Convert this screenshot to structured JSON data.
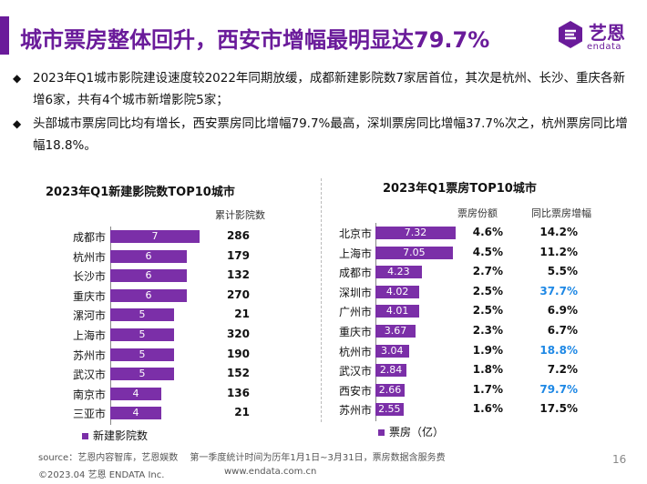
{
  "header": {
    "title": "城市票房整体回升，西安市增幅最明显达79.7%",
    "logo_cn": "艺恩",
    "logo_en": "endata"
  },
  "bullets": [
    "2023年Q1城市影院建设速度较2022年同期放缓，成都新建影院数7家居首位，其次是杭州、长沙、重庆各新增6家，共有4个城市新增影院5家；",
    "头部城市票房同比均有增长，西安票房同比增幅79.7%最高，深圳票房同比增幅37.7%次之，杭州票房同比增幅18.8%。"
  ],
  "chart_data": [
    {
      "type": "bar",
      "orientation": "horizontal",
      "title": "2023年Q1新建影院数TOP10城市",
      "categories": [
        "成都市",
        "杭州市",
        "长沙市",
        "重庆市",
        "漯河市",
        "上海市",
        "苏州市",
        "武汉市",
        "南京市",
        "三亚市"
      ],
      "series": [
        {
          "name": "新建影院数",
          "values": [
            7,
            6,
            6,
            6,
            5,
            5,
            5,
            5,
            4,
            4
          ]
        }
      ],
      "table_header": "累计影院数",
      "table_values": [
        "286",
        "179",
        "132",
        "270",
        "21",
        "320",
        "190",
        "152",
        "136",
        "21"
      ]
    },
    {
      "type": "bar",
      "orientation": "horizontal",
      "title": "2023年Q1票房TOP10城市",
      "categories": [
        "北京市",
        "上海市",
        "成都市",
        "深圳市",
        "广州市",
        "重庆市",
        "杭州市",
        "武汉市",
        "西安市",
        "苏州市"
      ],
      "series": [
        {
          "name": "票房（亿）",
          "values": [
            7.32,
            7.05,
            4.23,
            4.02,
            4.01,
            3.67,
            3.04,
            2.84,
            2.66,
            2.55
          ]
        }
      ],
      "share_header": "票房份额",
      "share_values": [
        "4.6%",
        "4.5%",
        "2.7%",
        "2.5%",
        "2.5%",
        "2.3%",
        "1.9%",
        "1.8%",
        "1.7%",
        "1.6%"
      ],
      "growth_header": "同比票房增幅",
      "growth_values": [
        "14.2%",
        "11.2%",
        "5.5%",
        "37.7%",
        "6.9%",
        "6.7%",
        "18.8%",
        "7.2%",
        "79.7%",
        "17.5%"
      ],
      "highlight_color": "#1e88e5",
      "highlight_cities": [
        "深圳市",
        "杭州市",
        "西安市"
      ]
    }
  ],
  "colors": {
    "accent": "#6a1b9a",
    "bar": "#7b2fa8"
  },
  "footer": {
    "source": "source：艺恩内容智库，艺恩娱数　 第一季度统计时间为历年1月1日~3月31日，票房数据含服务费",
    "copyright": "©2023.04 艺恩 ENDATA Inc.",
    "url": "www.endata.com.cn",
    "page": "16"
  }
}
